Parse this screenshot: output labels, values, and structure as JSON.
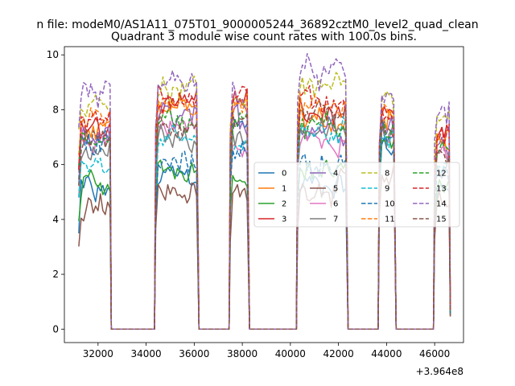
{
  "chart_data": {
    "type": "line",
    "suptitle": "n file: modeM0/AS1A11_075T01_9000005244_36892cztM0_level2_quad_clean",
    "title": "Quadrant 3 module wise count rates with 100.0s bins.",
    "xlabel": "",
    "ylabel": "",
    "x_offset_label": "+3.964e8",
    "xlim": [
      30600,
      47200
    ],
    "ylim": [
      -0.49,
      10.3
    ],
    "xticks": [
      32000,
      34000,
      36000,
      38000,
      40000,
      42000,
      44000,
      46000
    ],
    "xtick_labels": [
      "32000",
      "34000",
      "36000",
      "38000",
      "40000",
      "42000",
      "44000",
      "46000"
    ],
    "yticks": [
      0,
      2,
      4,
      6,
      8,
      10
    ],
    "ytick_labels": [
      "0",
      "2",
      "4",
      "6",
      "8",
      "10"
    ],
    "grid": false,
    "legend_placement": "center-right",
    "legend_columns": 4,
    "segments": [
      {
        "start": 31200,
        "end": 32500,
        "drop_to": 32550
      },
      {
        "start": 34400,
        "end": 36100,
        "drop_to": 36200
      },
      {
        "start": 37500,
        "end": 38200,
        "drop_to": 38300
      },
      {
        "start": 40300,
        "end": 42300,
        "drop_to": 42400
      },
      {
        "start": 43700,
        "end": 44300,
        "drop_to": 44400
      },
      {
        "start": 46000,
        "end": 46600,
        "drop_to": 46650
      }
    ],
    "gap_value": 0,
    "series": [
      {
        "name": "0",
        "color": "#1f77b4",
        "dash": false,
        "levels": [
          5.0,
          5.6,
          7.4,
          5.3,
          6.6,
          5.0
        ]
      },
      {
        "name": "1",
        "color": "#ff7f0e",
        "dash": false,
        "levels": [
          7.3,
          8.1,
          8.0,
          7.6,
          7.6,
          6.6
        ]
      },
      {
        "name": "2",
        "color": "#2ca02c",
        "dash": false,
        "levels": [
          5.2,
          5.9,
          5.5,
          5.8,
          6.9,
          5.2
        ]
      },
      {
        "name": "3",
        "color": "#d62728",
        "dash": false,
        "levels": [
          7.5,
          8.4,
          8.3,
          7.8,
          7.8,
          7.0
        ]
      },
      {
        "name": "4",
        "color": "#9467bd",
        "dash": false,
        "levels": [
          7.0,
          7.7,
          7.6,
          7.4,
          7.4,
          6.6
        ]
      },
      {
        "name": "5",
        "color": "#8c564b",
        "dash": false,
        "levels": [
          4.6,
          5.0,
          4.9,
          5.2,
          5.6,
          4.6
        ]
      },
      {
        "name": "6",
        "color": "#e377c2",
        "dash": false,
        "levels": [
          6.8,
          7.4,
          6.5,
          7.0,
          7.2,
          6.4
        ]
      },
      {
        "name": "7",
        "color": "#7f7f7f",
        "dash": false,
        "levels": [
          6.5,
          7.0,
          7.1,
          7.2,
          7.0,
          6.2
        ]
      },
      {
        "name": "8",
        "color": "#bcbd22",
        "dash": true,
        "levels": [
          8.4,
          8.6,
          8.5,
          8.9,
          8.3,
          7.5
        ]
      },
      {
        "name": "9",
        "color": "#17becf",
        "dash": true,
        "levels": [
          6.0,
          6.8,
          6.8,
          7.2,
          7.2,
          6.2
        ]
      },
      {
        "name": "10",
        "color": "#1f77b4",
        "dash": true,
        "levels": [
          6.9,
          6.0,
          6.6,
          6.1,
          7.1,
          5.6
        ]
      },
      {
        "name": "11",
        "color": "#ff7f0e",
        "dash": true,
        "levels": [
          7.8,
          8.3,
          8.1,
          8.1,
          7.9,
          7.0
        ]
      },
      {
        "name": "12",
        "color": "#2ca02c",
        "dash": true,
        "levels": [
          7.0,
          7.6,
          7.8,
          7.4,
          7.6,
          6.6
        ]
      },
      {
        "name": "13",
        "color": "#d62728",
        "dash": true,
        "levels": [
          7.6,
          8.6,
          8.3,
          8.3,
          7.8,
          7.1
        ]
      },
      {
        "name": "14",
        "color": "#9467bd",
        "dash": true,
        "levels": [
          8.6,
          9.1,
          8.6,
          9.3,
          8.4,
          7.9
        ]
      },
      {
        "name": "15",
        "color": "#8c564b",
        "dash": true,
        "levels": [
          6.9,
          7.4,
          7.5,
          7.6,
          7.3,
          6.4
        ]
      }
    ]
  }
}
